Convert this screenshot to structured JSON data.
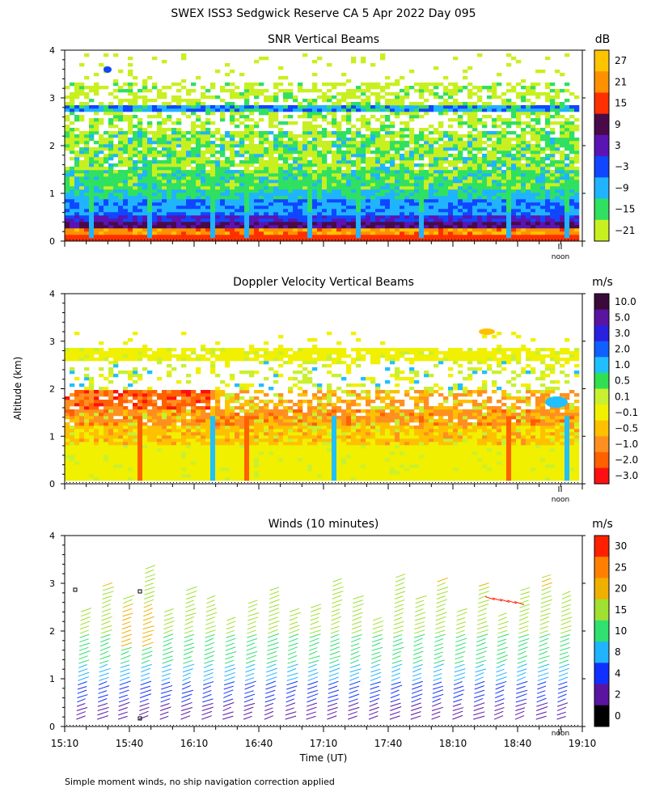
{
  "title": "SWEX ISS3 Sedgwick Reserve CA   5 Apr 2022 Day 095",
  "y_axis_label": "Altitude (km)",
  "x_axis_label": "Time (UT)",
  "noon_label": "noon",
  "footer_note": "Simple moment winds, no ship navigation correction applied",
  "x_ticks": [
    "15:10",
    "15:40",
    "16:10",
    "16:40",
    "17:10",
    "17:40",
    "18:10",
    "18:40",
    "19:10"
  ],
  "y_ticks": [
    "0",
    "1",
    "2",
    "3",
    "4"
  ],
  "panels": {
    "snr": {
      "title": "SNR Vertical Beams",
      "unit": "dB",
      "colorbar_labels": [
        "27",
        "21",
        "15",
        "9",
        "3",
        "−3",
        "−9",
        "−15",
        "−21"
      ],
      "colors": [
        "#ffc400",
        "#ff9000",
        "#ff3000",
        "#4a0a4a",
        "#5a14b4",
        "#1046ff",
        "#20b4ff",
        "#30e060",
        "#c8f020"
      ]
    },
    "doppler": {
      "title": "Doppler Velocity Vertical Beams",
      "unit": "m/s",
      "colorbar_labels": [
        "10.0",
        "5.0",
        "3.0",
        "2.0",
        "1.0",
        "0.5",
        "0.1",
        "−0.1",
        "−0.5",
        "−1.0",
        "−2.0",
        "−3.0"
      ],
      "colors": [
        "#3a0a3a",
        "#5a14a0",
        "#2a20e0",
        "#1060ff",
        "#20c0ff",
        "#30e050",
        "#c8f030",
        "#f0f000",
        "#ffc000",
        "#ff9020",
        "#ff6000",
        "#ff1010"
      ]
    },
    "winds": {
      "title": "Winds (10 minutes)",
      "unit": "m/s",
      "colorbar_labels": [
        "30",
        "25",
        "20",
        "15",
        "10",
        "8",
        "4",
        "2",
        "0"
      ],
      "colors": [
        "#ff2000",
        "#ff8000",
        "#f0b000",
        "#a0e030",
        "#30e070",
        "#20b4ff",
        "#1030ff",
        "#5a14a0",
        "#000000"
      ]
    }
  },
  "chart_data": [
    {
      "type": "heatmap",
      "title": "SNR Vertical Beams",
      "unit": "dB",
      "ylabel": "Altitude (km)",
      "x_range": [
        "15:10",
        "19:10"
      ],
      "ylim": [
        0,
        4
      ],
      "altitude_km": [
        0.2,
        0.5,
        0.8,
        1.1,
        1.4,
        1.7,
        2.0,
        2.3,
        2.6,
        2.8,
        3.1,
        3.4
      ],
      "representative_snr_db": [
        24,
        12,
        -6,
        -12,
        -15,
        -17,
        -18,
        -19,
        -20,
        -6,
        -21,
        -22
      ]
    },
    {
      "type": "heatmap",
      "title": "Doppler Velocity Vertical Beams",
      "unit": "m/s",
      "ylabel": "Altitude (km)",
      "x_range": [
        "15:10",
        "19:10"
      ],
      "ylim": [
        0,
        4
      ],
      "altitude_km": [
        0.2,
        0.5,
        0.8,
        1.1,
        1.4,
        1.7,
        2.0,
        2.8,
        3.1
      ],
      "representative_velocity_ms": [
        0,
        0,
        0,
        -0.5,
        -1.0,
        -1.5,
        -0.3,
        0,
        0
      ]
    },
    {
      "type": "scatter",
      "title": "Winds (10 minutes)",
      "unit": "m/s",
      "xlabel": "Time (UT)",
      "ylabel": "Altitude (km)",
      "x": [
        "15:10",
        "15:20",
        "15:30",
        "15:40",
        "15:50",
        "16:00",
        "16:10",
        "16:20",
        "16:30",
        "16:40",
        "16:50",
        "17:00",
        "17:10",
        "17:20",
        "17:30",
        "17:40",
        "17:50",
        "18:00",
        "18:10",
        "18:20",
        "18:30",
        "18:40",
        "18:50",
        "19:00"
      ],
      "altitude_km": [
        0.2,
        0.6,
        1.0,
        1.4,
        1.8,
        2.2,
        2.6,
        3.0,
        3.4
      ],
      "representative_speed_ms": [
        3,
        5,
        9,
        11,
        14,
        16,
        18,
        19,
        20
      ]
    }
  ]
}
